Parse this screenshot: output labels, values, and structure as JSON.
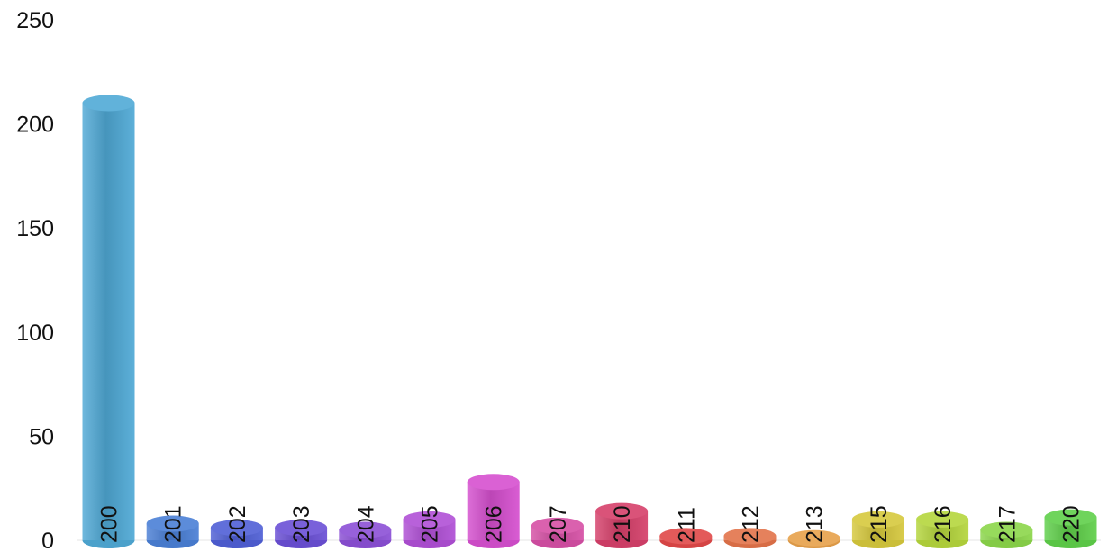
{
  "chart_data": {
    "type": "bar",
    "style": "3d-cylinder",
    "categories": [
      "200",
      "201",
      "202",
      "203",
      "204",
      "205",
      "206",
      "207",
      "210",
      "211",
      "212",
      "213",
      "215",
      "216",
      "217",
      "220"
    ],
    "values": [
      210,
      8,
      6,
      6,
      5,
      10,
      28,
      7,
      14,
      2,
      2,
      1,
      10,
      10,
      5,
      11
    ],
    "colors": [
      "#4fa9d6",
      "#4a7fd6",
      "#4f5fd6",
      "#6a4fd6",
      "#8b4fd6",
      "#b04fd6",
      "#d64fcf",
      "#d64fa5",
      "#d6406a",
      "#e04848",
      "#e2734a",
      "#e6a04a",
      "#d6c83c",
      "#b5d63c",
      "#8bd64a",
      "#5fcf4a"
    ],
    "y_ticks": [
      "0",
      "50",
      "100",
      "150",
      "200",
      "250"
    ],
    "ylim": [
      0,
      250
    ],
    "grid": false,
    "legend": "none",
    "category_labels_position": "rotated-inside-base"
  }
}
